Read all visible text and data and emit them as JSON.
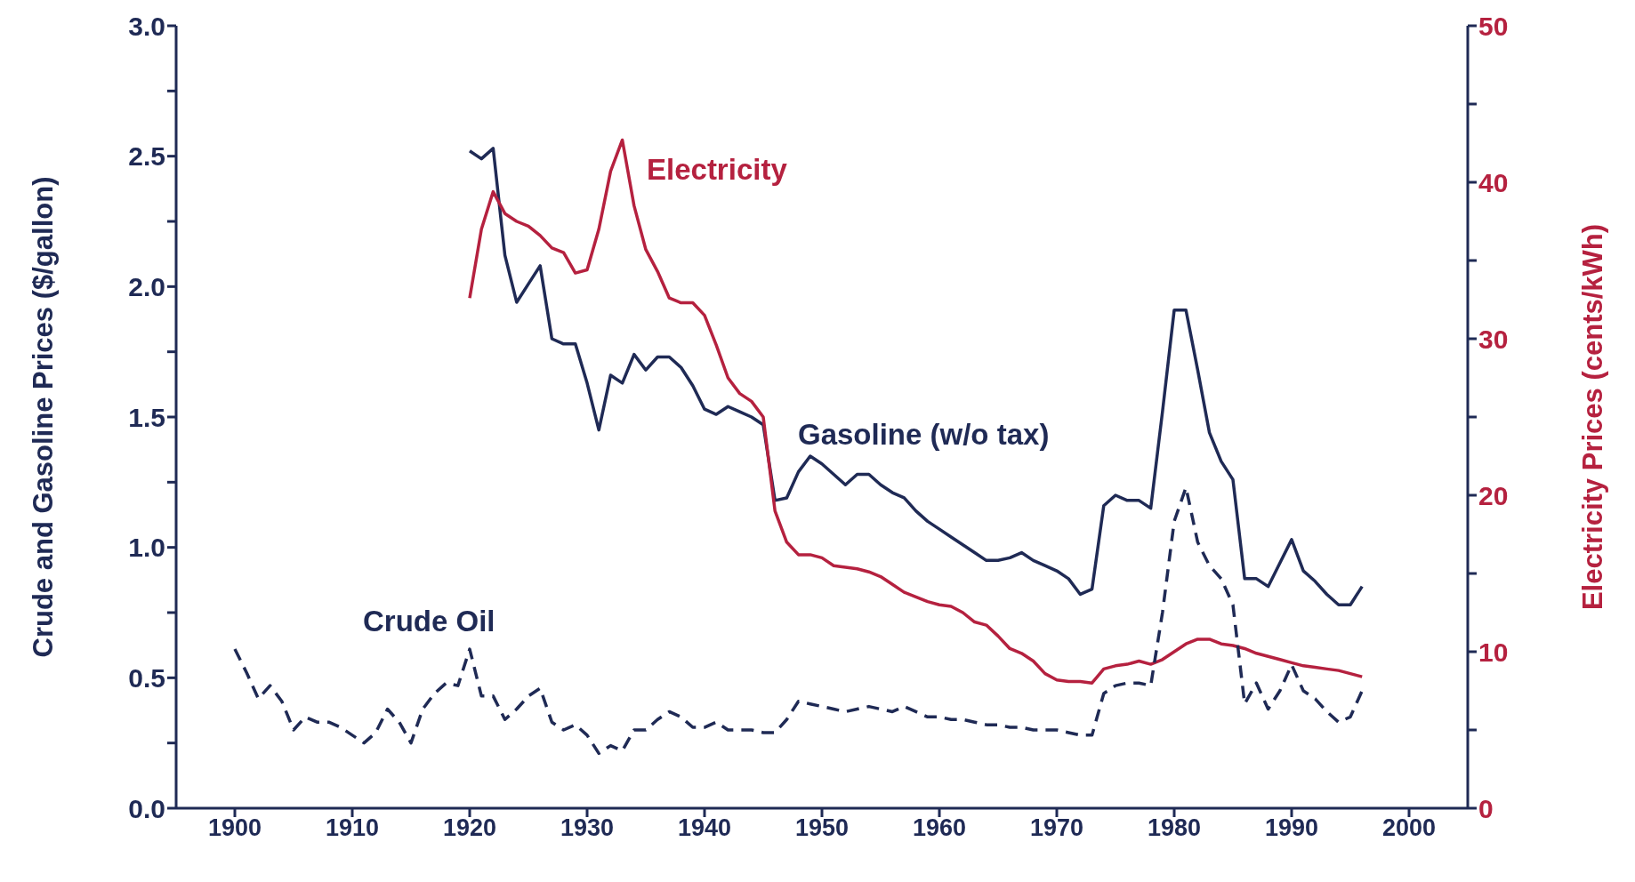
{
  "chart_data": {
    "type": "line",
    "ylabel": "Crude and Gasoline Prices ($/gallon)",
    "y2label": "Electricity Prices (cents/kWh)",
    "xlim": [
      1895,
      2005
    ],
    "xticks": [
      1900,
      1910,
      1920,
      1930,
      1940,
      1950,
      1960,
      1970,
      1980,
      1990,
      2000
    ],
    "ylim": [
      0,
      3
    ],
    "yticks": [
      {
        "value": 0,
        "label": "0.0"
      },
      {
        "value": 0.25,
        "label": null
      },
      {
        "value": 0.5,
        "label": "0.5"
      },
      {
        "value": 0.75,
        "label": null
      },
      {
        "value": 1,
        "label": "1.0"
      },
      {
        "value": 1.25,
        "label": null
      },
      {
        "value": 1.5,
        "label": "1.5"
      },
      {
        "value": 1.75,
        "label": null
      },
      {
        "value": 2,
        "label": "2.0"
      },
      {
        "value": 2.25,
        "label": null
      },
      {
        "value": 2.5,
        "label": "2.5"
      },
      {
        "value": 2.75,
        "label": null
      },
      {
        "value": 3,
        "label": "3.0"
      }
    ],
    "y2lim": [
      0,
      50
    ],
    "y2ticks": [
      0,
      {
        "value": 5,
        "label": null
      },
      10,
      {
        "value": 15,
        "label": null
      },
      20,
      {
        "value": 25,
        "label": null
      },
      30,
      {
        "value": 35,
        "label": null
      },
      40,
      {
        "value": 45,
        "label": null
      },
      50
    ],
    "grid": false,
    "legend": false,
    "marker": "none",
    "series": [
      {
        "name": "Gasoline (w/o tax)",
        "color": "#1f2a55",
        "line_style": "solid",
        "x": [
          1920,
          1921,
          1922,
          1923,
          1924,
          1925,
          1926,
          1927,
          1928,
          1929,
          1930,
          1931,
          1932,
          1933,
          1934,
          1935,
          1936,
          1937,
          1938,
          1939,
          1940,
          1941,
          1942,
          1943,
          1944,
          1945,
          1946,
          1947,
          1948,
          1949,
          1950,
          1951,
          1952,
          1953,
          1954,
          1955,
          1956,
          1957,
          1958,
          1959,
          1960,
          1961,
          1962,
          1963,
          1964,
          1965,
          1966,
          1967,
          1968,
          1969,
          1970,
          1971,
          1972,
          1973,
          1974,
          1975,
          1976,
          1977,
          1978,
          1979,
          1980,
          1981,
          1982,
          1983,
          1984,
          1985,
          1986,
          1987,
          1988,
          1989,
          1990,
          1991,
          1992,
          1993,
          1994,
          1995,
          1996
        ],
        "values": [
          2.52,
          2.49,
          2.53,
          2.12,
          1.94,
          2.01,
          2.08,
          1.8,
          1.78,
          1.78,
          1.63,
          1.45,
          1.66,
          1.63,
          1.74,
          1.68,
          1.73,
          1.73,
          1.69,
          1.62,
          1.53,
          1.51,
          1.54,
          1.52,
          1.5,
          1.47,
          1.18,
          1.19,
          1.29,
          1.35,
          1.32,
          1.28,
          1.24,
          1.28,
          1.28,
          1.24,
          1.21,
          1.19,
          1.14,
          1.1,
          1.07,
          1.04,
          1.01,
          0.98,
          0.95,
          0.95,
          0.96,
          0.98,
          0.95,
          0.93,
          0.91,
          0.88,
          0.82,
          0.84,
          1.16,
          1.2,
          1.18,
          1.18,
          1.15,
          1.52,
          1.91,
          1.91,
          1.68,
          1.44,
          1.33,
          1.26,
          0.88,
          0.88,
          0.85,
          0.94,
          1.03,
          0.91,
          0.87,
          0.82,
          0.78,
          0.78,
          0.85
        ]
      },
      {
        "name": "Electricity",
        "color": "#b5213f",
        "line_style": "solid",
        "axis": "y2",
        "x": [
          1920,
          1921,
          1922,
          1923,
          1924,
          1925,
          1926,
          1927,
          1928,
          1929,
          1930,
          1931,
          1932,
          1933,
          1934,
          1935,
          1936,
          1937,
          1938,
          1939,
          1940,
          1941,
          1942,
          1943,
          1944,
          1945,
          1946,
          1947,
          1948,
          1949,
          1950,
          1951,
          1952,
          1953,
          1954,
          1955,
          1956,
          1957,
          1958,
          1959,
          1960,
          1961,
          1962,
          1963,
          1964,
          1965,
          1966,
          1967,
          1968,
          1969,
          1970,
          1971,
          1972,
          1973,
          1974,
          1975,
          1976,
          1977,
          1978,
          1979,
          1980,
          1981,
          1982,
          1983,
          1984,
          1985,
          1986,
          1987,
          1988,
          1989,
          1990,
          1991,
          1992,
          1993,
          1994,
          1995,
          1996
        ],
        "values": [
          32.6,
          37,
          39.4,
          38,
          37.5,
          37.2,
          36.6,
          35.8,
          35.5,
          34.2,
          34.4,
          37,
          40.7,
          42.7,
          38.5,
          35.7,
          34.3,
          32.6,
          32.3,
          32.3,
          31.5,
          29.6,
          27.5,
          26.5,
          26,
          25,
          19,
          17,
          16.2,
          16.2,
          16,
          15.5,
          15.4,
          15.3,
          15.1,
          14.8,
          14.3,
          13.8,
          13.5,
          13.2,
          13,
          12.9,
          12.5,
          11.9,
          11.7,
          11,
          10.2,
          9.9,
          9.4,
          8.6,
          8.2,
          8.1,
          8.1,
          8,
          8.9,
          9.1,
          9.2,
          9.4,
          9.2,
          9.5,
          10,
          10.5,
          10.8,
          10.8,
          10.5,
          10.4,
          10.2,
          9.9,
          9.7,
          9.5,
          9.3,
          9.1,
          9,
          8.9,
          8.8,
          8.6,
          8.4
        ]
      },
      {
        "name": "Crude Oil",
        "color": "#1f2a55",
        "line_style": "dashed",
        "x": [
          1900,
          1901,
          1902,
          1903,
          1904,
          1905,
          1906,
          1907,
          1908,
          1909,
          1910,
          1911,
          1912,
          1913,
          1914,
          1915,
          1916,
          1917,
          1918,
          1919,
          1920,
          1921,
          1922,
          1923,
          1924,
          1925,
          1926,
          1927,
          1928,
          1929,
          1930,
          1931,
          1932,
          1933,
          1934,
          1935,
          1936,
          1937,
          1938,
          1939,
          1940,
          1941,
          1942,
          1943,
          1944,
          1945,
          1946,
          1947,
          1948,
          1949,
          1950,
          1951,
          1952,
          1953,
          1954,
          1955,
          1956,
          1957,
          1958,
          1959,
          1960,
          1961,
          1962,
          1963,
          1964,
          1965,
          1966,
          1967,
          1968,
          1969,
          1970,
          1971,
          1972,
          1973,
          1974,
          1975,
          1976,
          1977,
          1978,
          1979,
          1980,
          1981,
          1982,
          1983,
          1984,
          1985,
          1986,
          1987,
          1988,
          1989,
          1990,
          1991,
          1992,
          1993,
          1994,
          1995,
          1996
        ],
        "values": [
          0.61,
          0.52,
          0.42,
          0.47,
          0.41,
          0.3,
          0.35,
          0.33,
          0.33,
          0.31,
          0.28,
          0.25,
          0.29,
          0.38,
          0.33,
          0.25,
          0.38,
          0.44,
          0.48,
          0.47,
          0.61,
          0.43,
          0.43,
          0.34,
          0.38,
          0.43,
          0.46,
          0.33,
          0.3,
          0.32,
          0.28,
          0.21,
          0.24,
          0.22,
          0.3,
          0.3,
          0.34,
          0.37,
          0.35,
          0.31,
          0.31,
          0.33,
          0.3,
          0.3,
          0.3,
          0.29,
          0.29,
          0.34,
          0.41,
          0.4,
          0.39,
          0.38,
          0.37,
          0.38,
          0.39,
          0.38,
          0.37,
          0.39,
          0.37,
          0.35,
          0.35,
          0.34,
          0.34,
          0.33,
          0.32,
          0.32,
          0.31,
          0.31,
          0.3,
          0.3,
          0.3,
          0.29,
          0.28,
          0.28,
          0.44,
          0.47,
          0.48,
          0.48,
          0.47,
          0.75,
          1.1,
          1.23,
          1.02,
          0.93,
          0.88,
          0.78,
          0.4,
          0.48,
          0.38,
          0.45,
          0.55,
          0.45,
          0.42,
          0.37,
          0.33,
          0.35,
          0.45
        ]
      }
    ]
  }
}
